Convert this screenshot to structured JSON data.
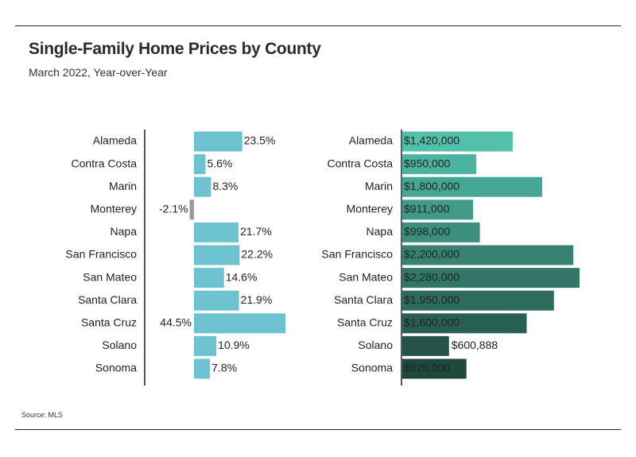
{
  "title": "Single-Family Home Prices by County",
  "subtitle": "March 2022, Year-over-Year",
  "source": "Source: MLS",
  "chart_data": [
    {
      "type": "bar",
      "orientation": "horizontal",
      "categories": [
        "Alameda",
        "Contra Costa",
        "Marin",
        "Monterey",
        "Napa",
        "San Francisco",
        "San Mateo",
        "Santa Clara",
        "Santa Cruz",
        "Solano",
        "Sonoma"
      ],
      "values": [
        23.5,
        5.6,
        8.3,
        -2.1,
        21.7,
        22.2,
        14.6,
        21.9,
        44.5,
        10.9,
        7.8
      ],
      "labels": [
        "23.5%",
        "5.6%",
        "8.3%",
        "-2.1%",
        "21.7%",
        "22.2%",
        "14.6%",
        "21.9%",
        "44.5%",
        "10.9%",
        "7.8%"
      ],
      "colors": {
        "positive": "#6cc3cf",
        "negative": "#9a9a9a"
      },
      "xlim": [
        -3,
        45
      ]
    },
    {
      "type": "bar",
      "orientation": "horizontal",
      "categories": [
        "Alameda",
        "Contra Costa",
        "Marin",
        "Monterey",
        "Napa",
        "San Francisco",
        "San Mateo",
        "Santa Clara",
        "Santa Cruz",
        "Solano",
        "Sonoma"
      ],
      "values": [
        1420000,
        950000,
        1800000,
        911000,
        998000,
        2200000,
        2280000,
        1950000,
        1600000,
        600888,
        825000
      ],
      "labels": [
        "$1,420,000",
        "$950,000",
        "$1,800,000",
        "$911,000",
        "$998,000",
        "$2,200,000",
        "$2,280,000",
        "$1,950,000",
        "$1,600,000",
        "$600,888",
        "$825,000"
      ],
      "colors": [
        "#52c0aa",
        "#4bb39f",
        "#45a693",
        "#419a88",
        "#3c8e7d",
        "#378272",
        "#327668",
        "#2d6b5d",
        "#285f53",
        "#235349",
        "#1f483f"
      ],
      "xlim": [
        0,
        2300000
      ]
    }
  ]
}
